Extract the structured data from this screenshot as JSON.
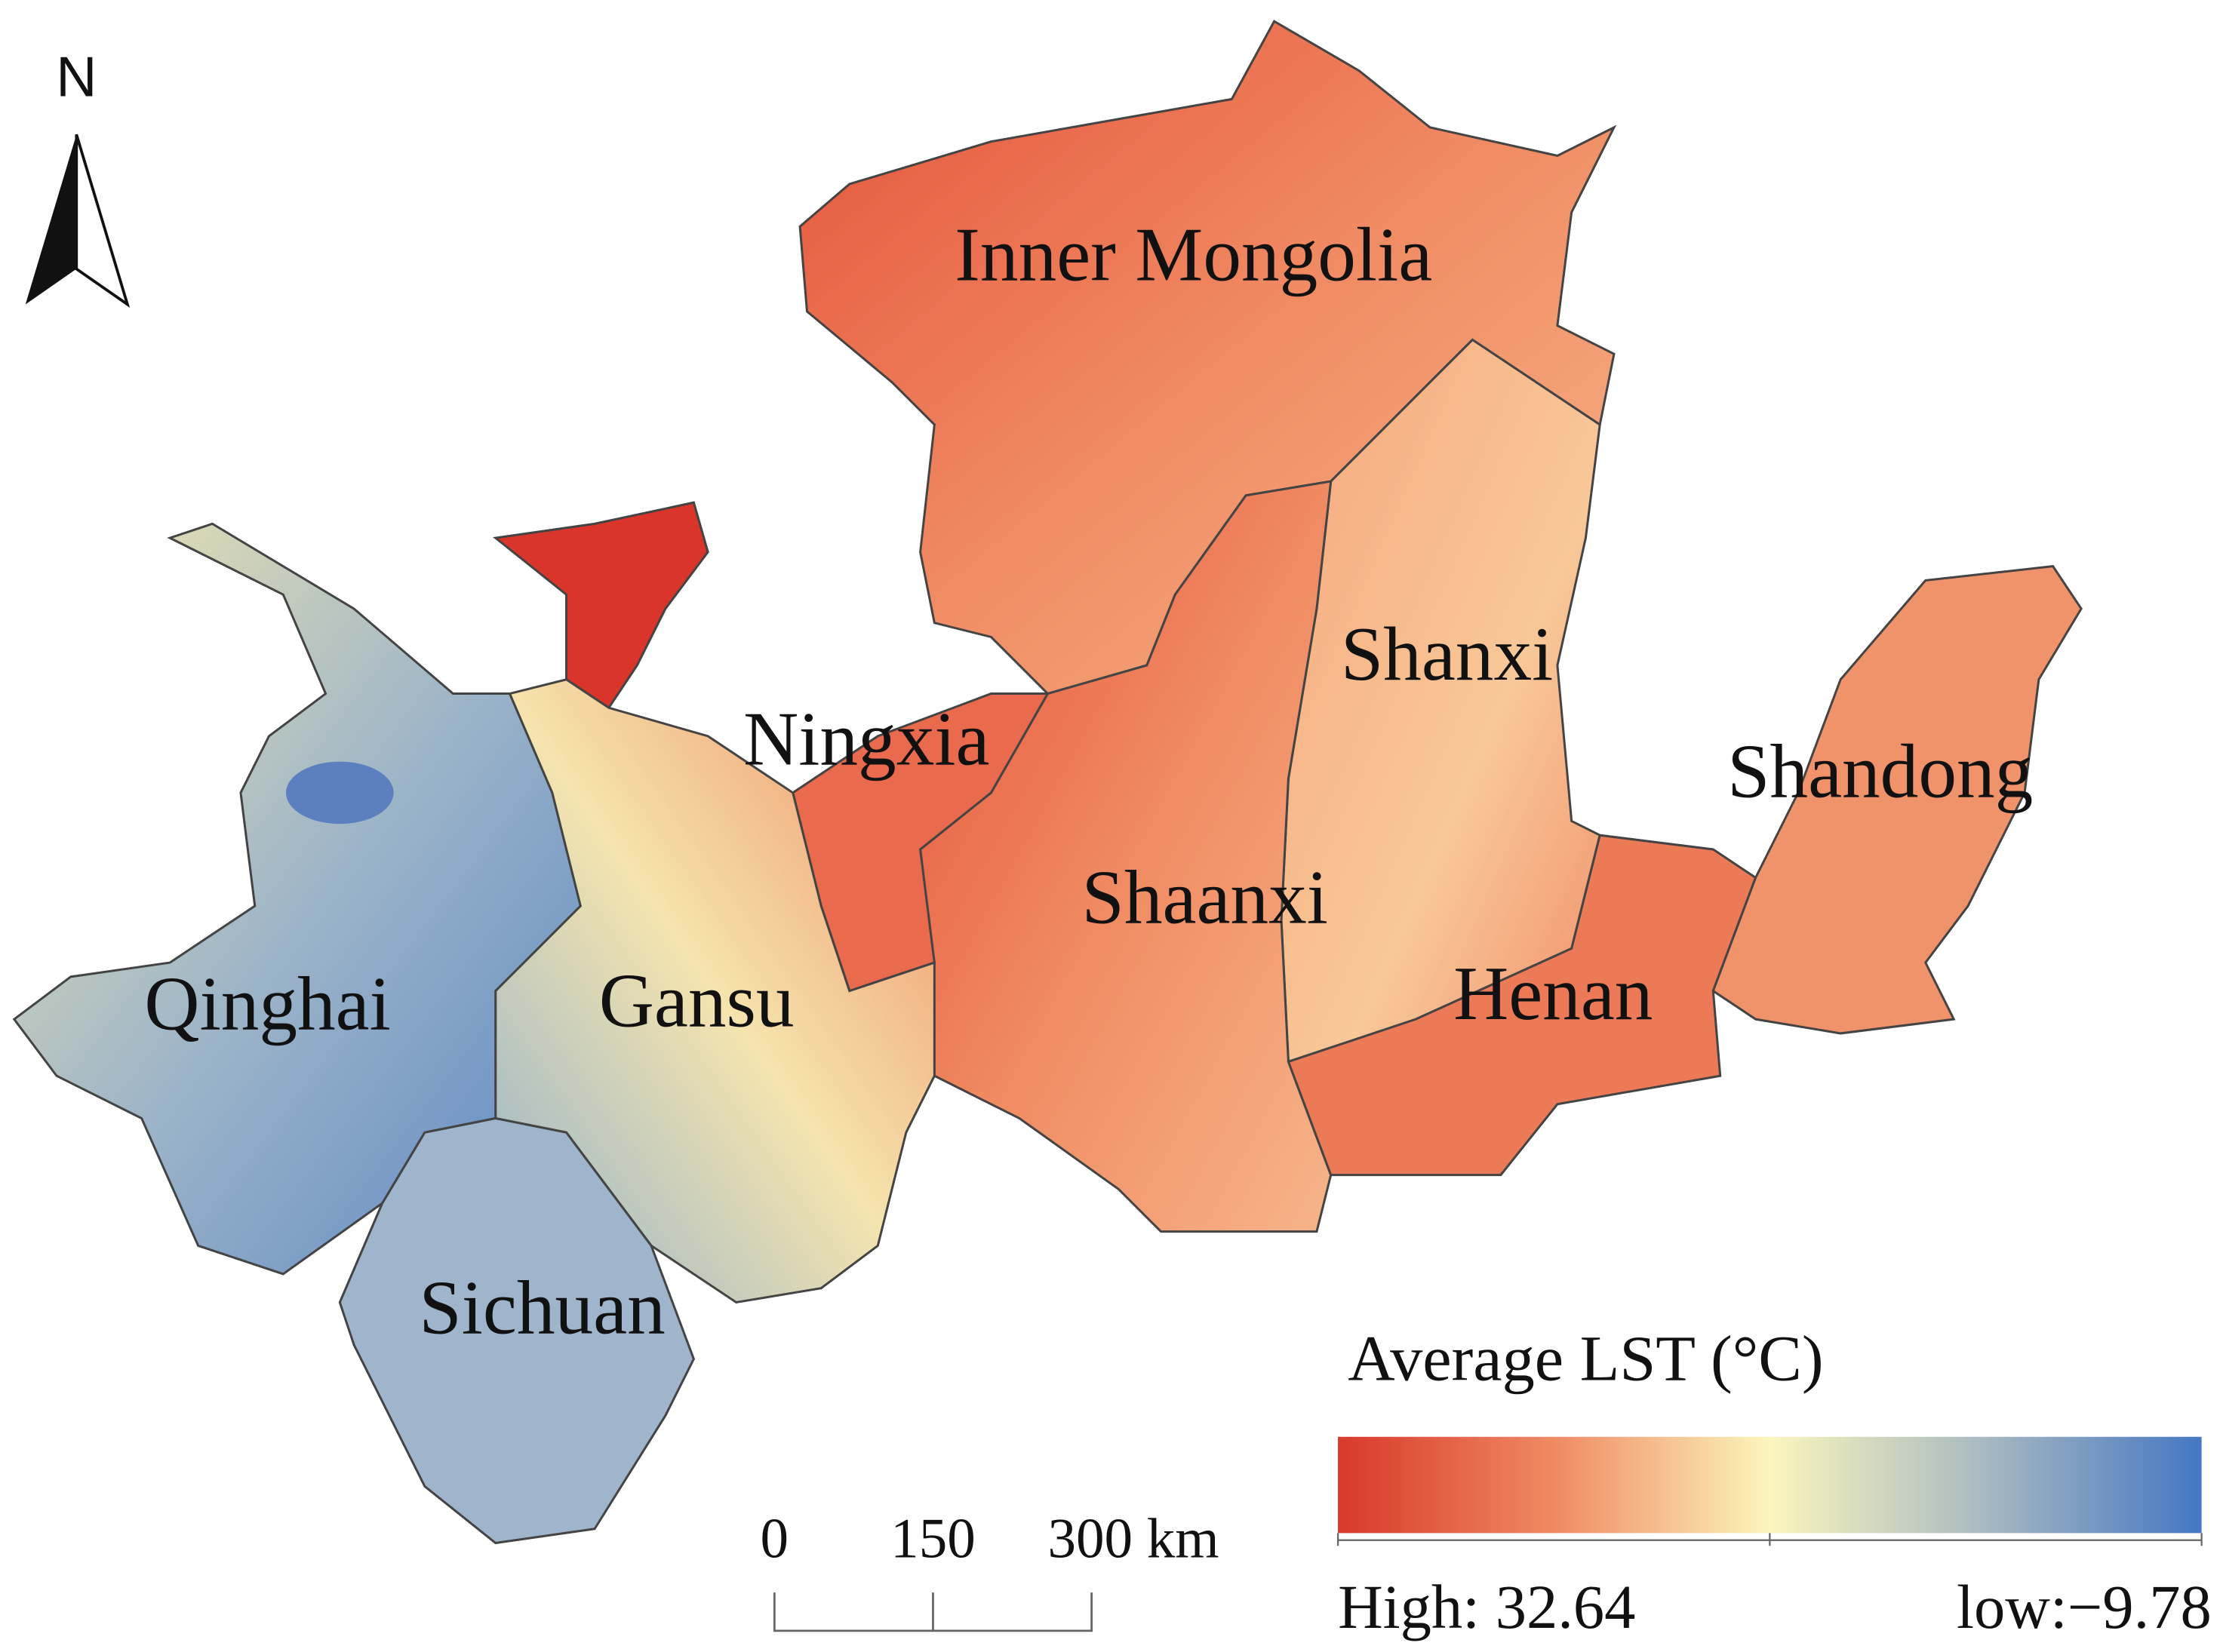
{
  "north": "N",
  "regions": [
    {
      "name": "Inner Mongolia"
    },
    {
      "name": "Shanxi"
    },
    {
      "name": "Ningxia"
    },
    {
      "name": "Shandong"
    },
    {
      "name": "Shaanxi"
    },
    {
      "name": "Henan"
    },
    {
      "name": "Qinghai"
    },
    {
      "name": "Gansu"
    },
    {
      "name": "Sichuan"
    }
  ],
  "legend": {
    "title": "Average LST (°C)",
    "high": "High: 32.64",
    "low": "low:−9.78"
  },
  "scale_bar": {
    "labels": [
      "0",
      "150",
      "300 km"
    ]
  }
}
